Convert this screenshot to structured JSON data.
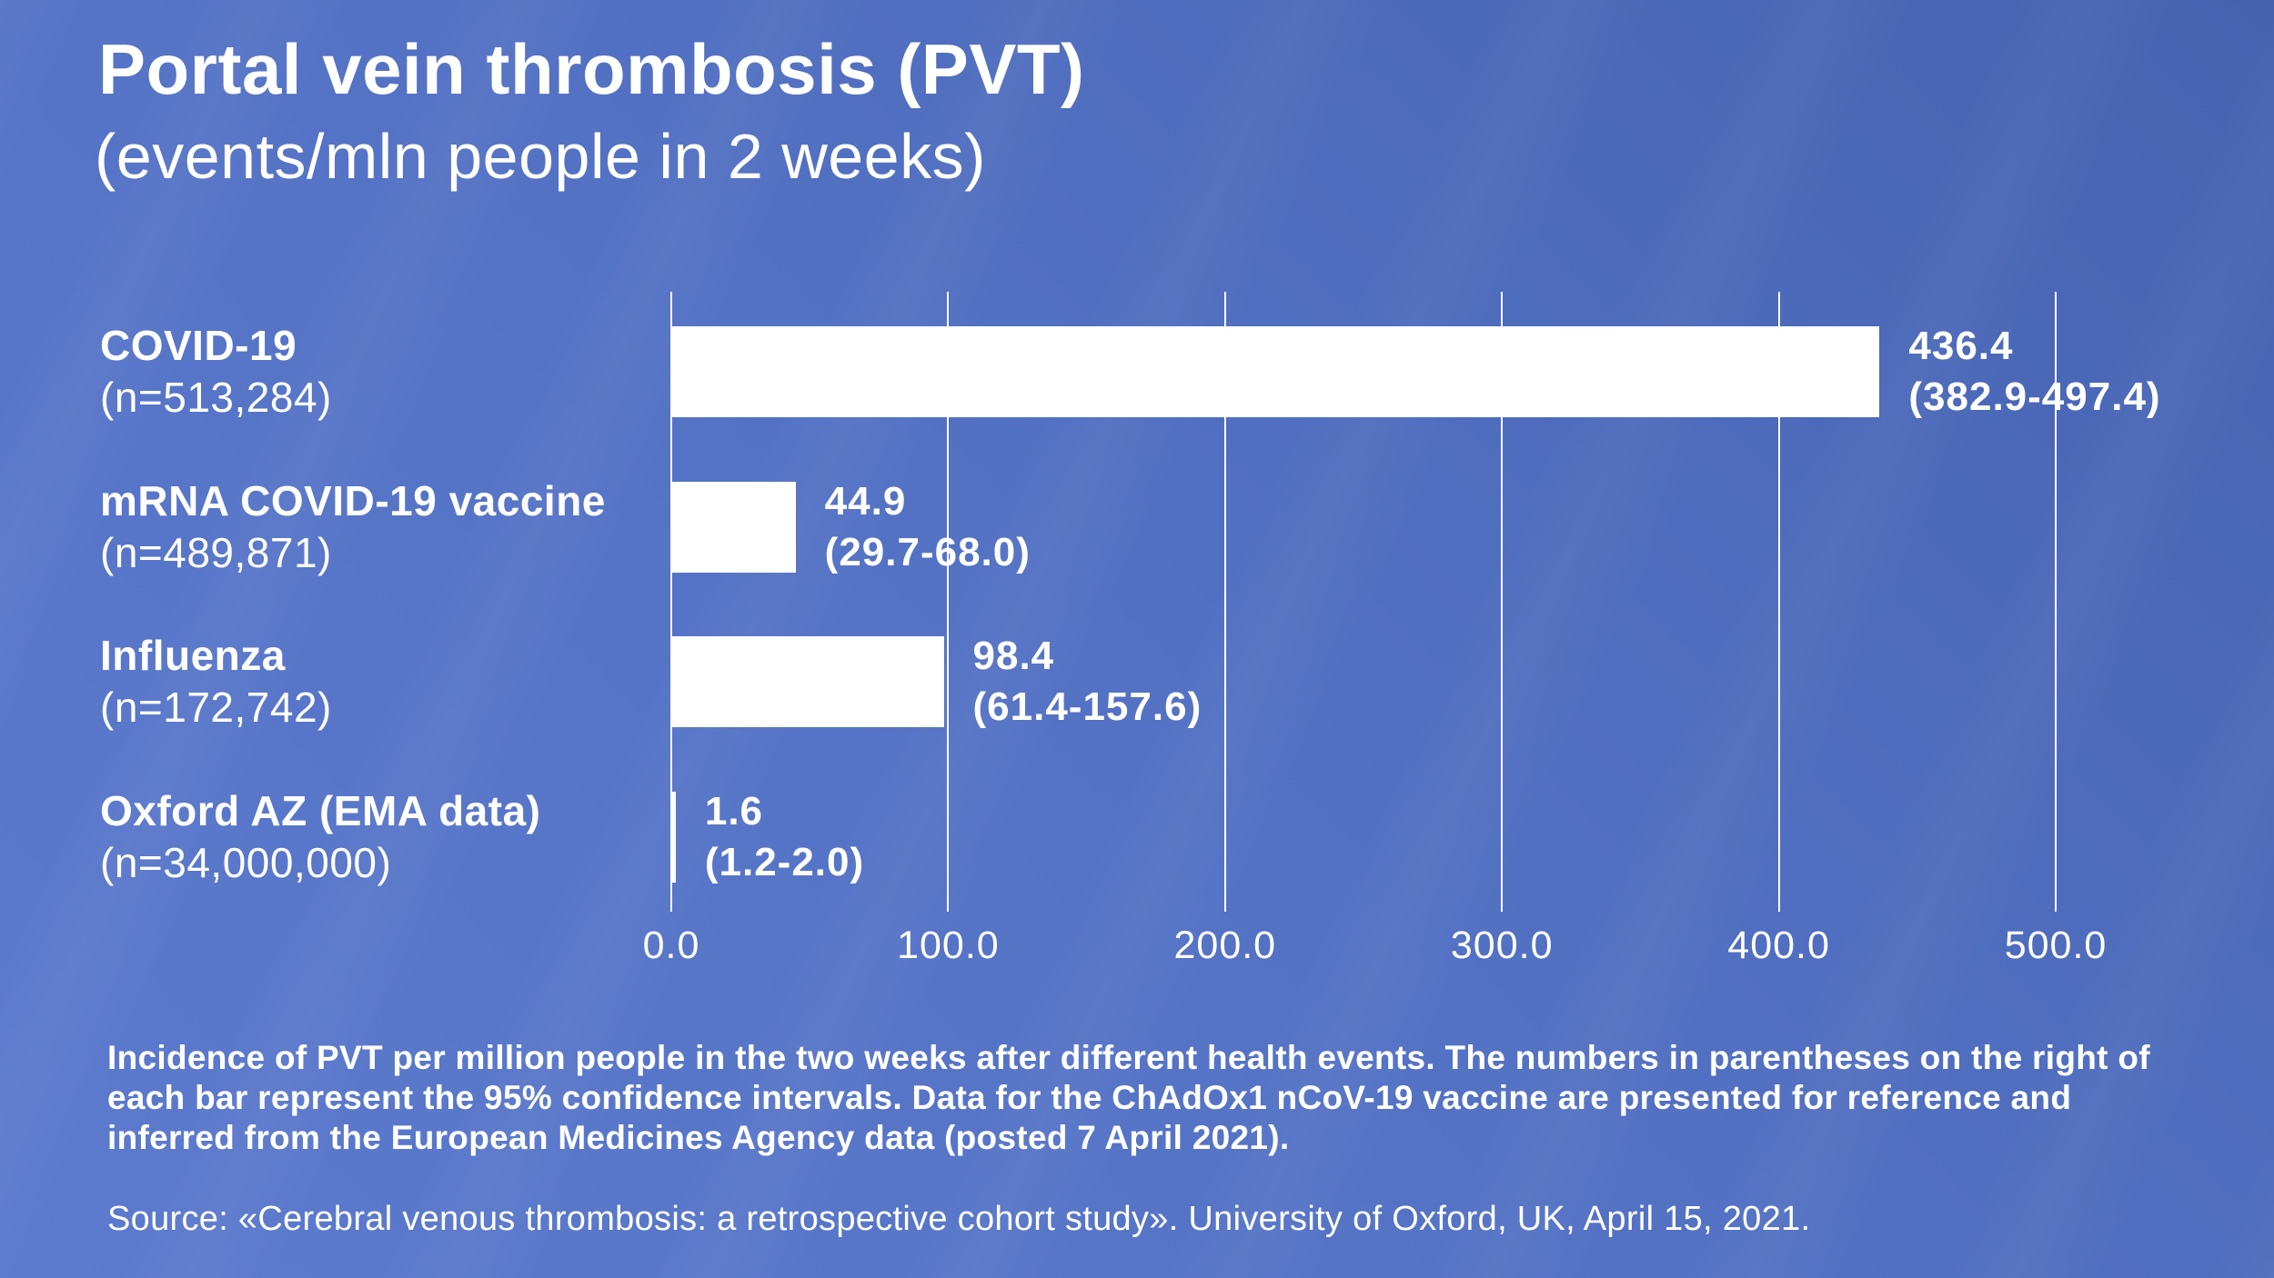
{
  "title": "Portal vein thrombosis (PVT)",
  "subtitle": "(events/mln people in 2 weeks)",
  "colors": {
    "background_light": "#5d7bce",
    "background_mid": "#5472c4",
    "background_dark": "#4663b2",
    "bar": "#ffffff",
    "text": "#ffffff",
    "gridline": "#ffffff"
  },
  "chart_data": {
    "type": "bar",
    "orientation": "horizontal",
    "title": "Portal vein thrombosis (PVT)",
    "subtitle": "(events/mln people in 2 weeks)",
    "xlabel": "",
    "ylabel": "",
    "xlim": [
      0,
      500
    ],
    "grid": true,
    "xticks": [
      0,
      100,
      200,
      300,
      400,
      500
    ],
    "xtick_labels": [
      "0.0",
      "100.0",
      "200.0",
      "300.0",
      "400.0",
      "500.0"
    ],
    "rows": [
      {
        "label": "COVID-19",
        "n_label": "(n=513,284)",
        "value": 436.4,
        "value_label": "436.4",
        "ci_low": 382.9,
        "ci_high": 497.4,
        "ci_label": "(382.9-497.4)"
      },
      {
        "label": "mRNA COVID-19 vaccine",
        "n_label": "(n=489,871)",
        "value": 44.9,
        "value_label": "44.9",
        "ci_low": 29.7,
        "ci_high": 68.0,
        "ci_label": "(29.7-68.0)"
      },
      {
        "label": "Influenza",
        "n_label": "(n=172,742)",
        "value": 98.4,
        "value_label": "98.4",
        "ci_low": 61.4,
        "ci_high": 157.6,
        "ci_label": "(61.4-157.6)"
      },
      {
        "label": "Oxford AZ (EMA data)",
        "n_label": "(n=34,000,000)",
        "value": 1.6,
        "value_label": "1.6",
        "ci_low": 1.2,
        "ci_high": 2.0,
        "ci_label": "(1.2-2.0)"
      }
    ]
  },
  "footnote": "Incidence of PVT per million people in the two weeks after different health events. The numbers in parentheses on the right of each bar represent the 95% confidence intervals. Data for the ChAdOx1 nCoV-19 vaccine are presented for reference and inferred from the European Medicines Agency data (posted 7 April 2021).",
  "source": "Source: «Cerebral venous thrombosis: a retrospective cohort study». University of Oxford, UK, April 15, 2021."
}
